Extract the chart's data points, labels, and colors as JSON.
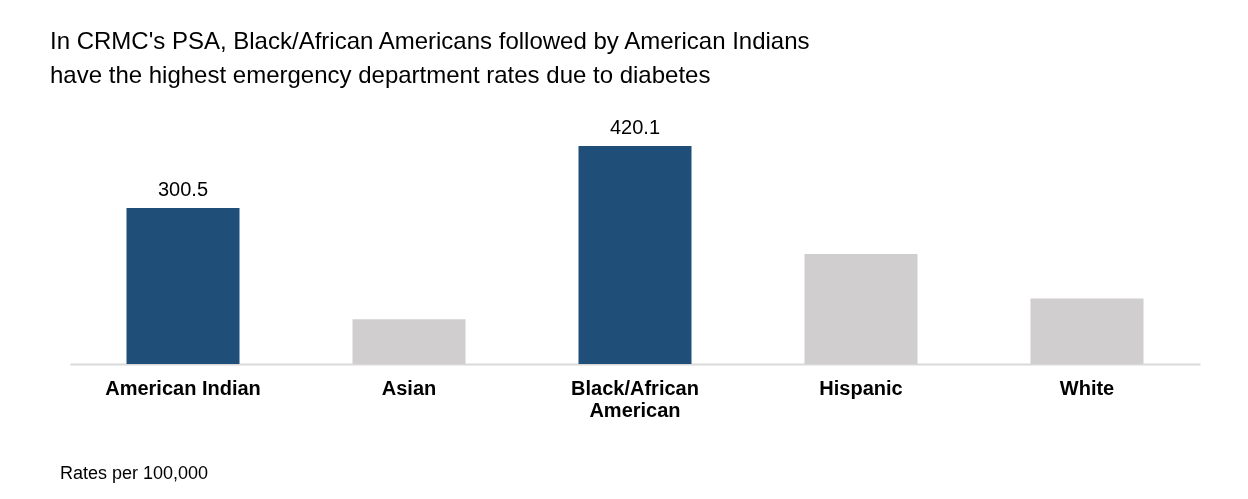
{
  "chart_data": {
    "type": "bar",
    "title": "In CRMC's PSA, Black/African Americans followed by American Indians have the highest emergency department rates due to diabetes",
    "categories": [
      "American Indian",
      "Asian",
      "Black/African American",
      "Hispanic",
      "White"
    ],
    "values": [
      300.5,
      86,
      420.1,
      212,
      126
    ],
    "colors": [
      "#1f4e79",
      "#d0cece",
      "#1f4e79",
      "#d0cece",
      "#d0cece"
    ],
    "value_labels": [
      "300.5",
      null,
      "420.1",
      null,
      null
    ],
    "annotations": [
      "Rates per 100,000"
    ]
  }
}
